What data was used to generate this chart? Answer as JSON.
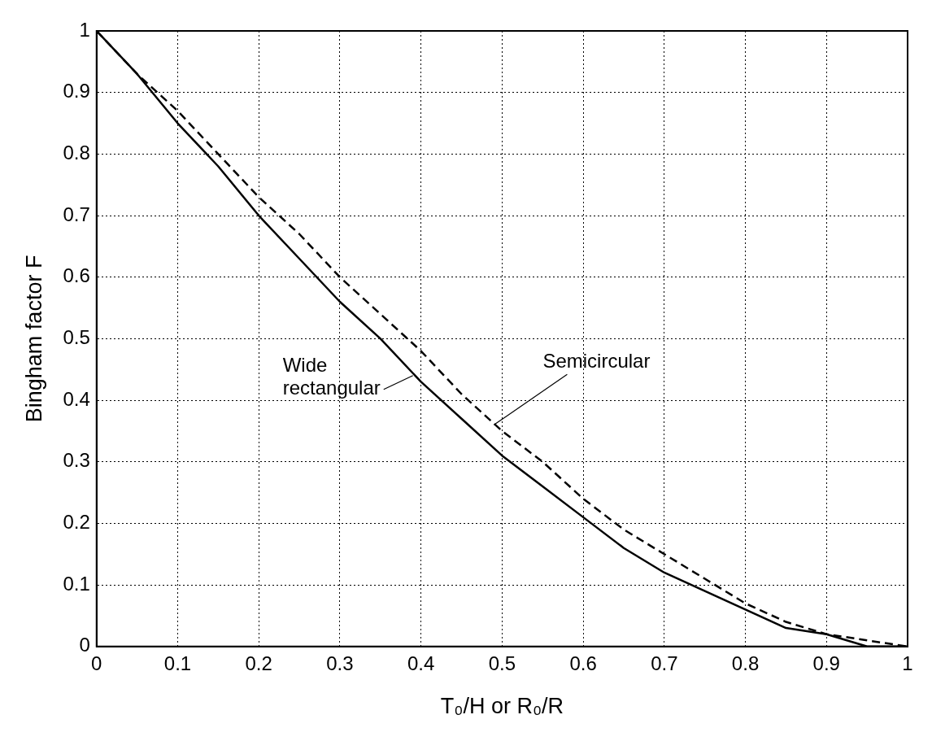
{
  "chart_data": {
    "type": "line",
    "xlabel": "T₀/H or R₀/R",
    "ylabel": "Bingham factor F",
    "x": [
      0,
      0.05,
      0.1,
      0.15,
      0.2,
      0.25,
      0.3,
      0.35,
      0.4,
      0.45,
      0.5,
      0.55,
      0.6,
      0.65,
      0.7,
      0.75,
      0.8,
      0.85,
      0.9,
      0.95,
      1
    ],
    "series": [
      {
        "color": "#000000",
        "line_style": "solid",
        "values": [
          1,
          0.93,
          0.85,
          0.78,
          0.7,
          0.63,
          0.56,
          0.5,
          0.43,
          0.37,
          0.31,
          0.26,
          0.21,
          0.16,
          0.12,
          0.09,
          0.06,
          0.03,
          0.02,
          0.0,
          0
        ]
      },
      {
        "color": "#000000",
        "line_style": "dashed",
        "values": [
          1,
          0.93,
          0.87,
          0.8,
          0.73,
          0.67,
          0.6,
          0.54,
          0.48,
          0.41,
          0.35,
          0.3,
          0.24,
          0.19,
          0.15,
          0.11,
          0.07,
          0.04,
          0.02,
          0.01,
          0
        ]
      }
    ],
    "annotations": [
      {
        "text": "Wide\nrectangular",
        "x": 0.39,
        "y": 0.44
      },
      {
        "text": "Semicircular",
        "x": 0.49,
        "y": 0.36
      }
    ],
    "xlim": [
      0,
      1
    ],
    "ylim": [
      0,
      1
    ],
    "xticks": [
      0,
      0.1,
      0.2,
      0.3,
      0.4,
      0.5,
      0.6,
      0.7,
      0.8,
      0.9,
      1
    ],
    "yticks": [
      0,
      0.1,
      0.2,
      0.3,
      0.4,
      0.5,
      0.6,
      0.7,
      0.8,
      0.9,
      1
    ],
    "grid": true,
    "marker": "none",
    "legend": false
  }
}
